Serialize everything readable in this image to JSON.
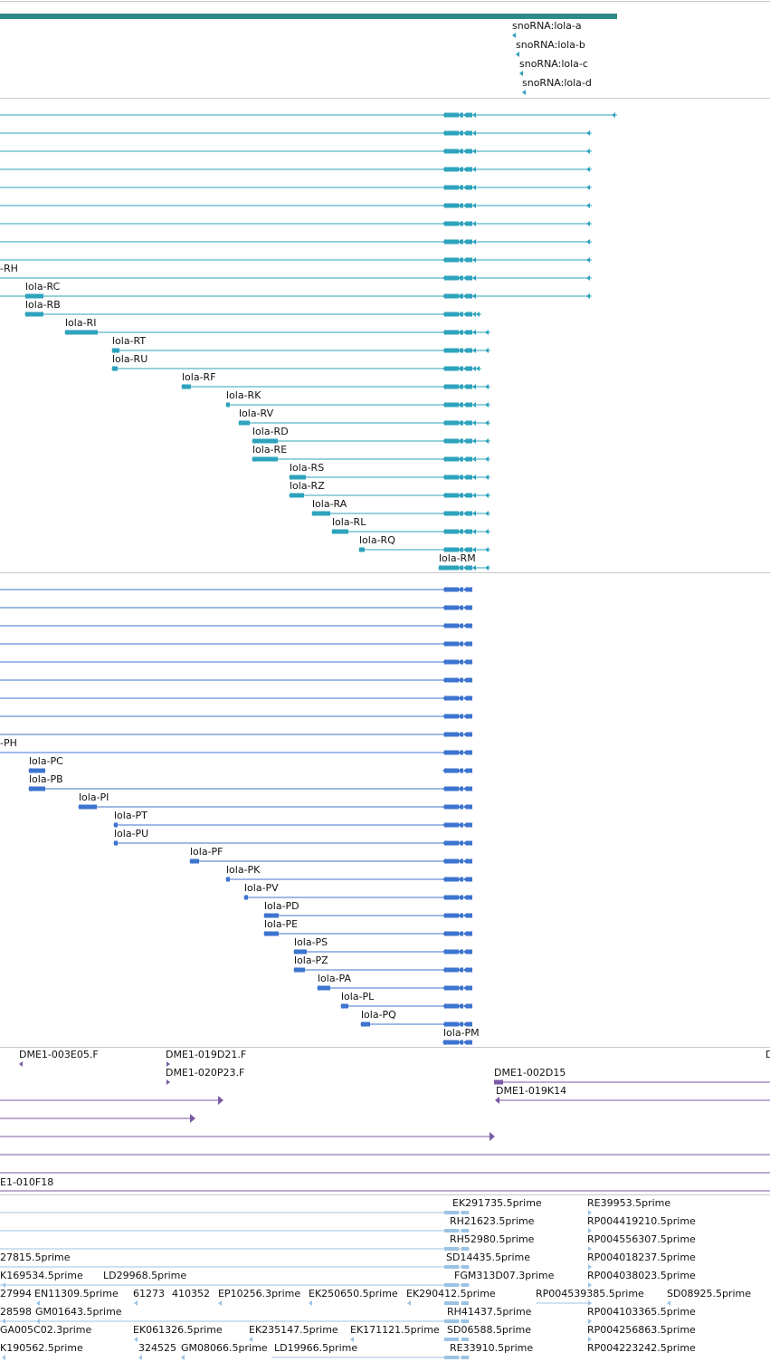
{
  "colors": {
    "rna": "#2ea3bd",
    "protein": "#3d74cf",
    "clone": "#7a5aa6",
    "est": "#9cc3e3",
    "divider": "#c8c8c8",
    "bar": "#2e8b87"
  },
  "snoRNA": {
    "labels": [
      "snoRNA:lola-a",
      "snoRNA:lola-b",
      "snoRNA:lola-c",
      "snoRNA:lola-d"
    ]
  },
  "transcripts": {
    "labels": [
      "-RH",
      "lola-RC",
      "lola-RB",
      "lola-RI",
      "lola-RT",
      "lola-RU",
      "lola-RF",
      "lola-RK",
      "lola-RV",
      "lola-RD",
      "lola-RE",
      "lola-RS",
      "lola-RZ",
      "lola-RA",
      "lola-RL",
      "lola-RQ",
      "lola-RM"
    ]
  },
  "proteins": {
    "labels": [
      "-PH",
      "lola-PC",
      "lola-PB",
      "lola-PI",
      "lola-PT",
      "lola-PU",
      "lola-PF",
      "lola-PK",
      "lola-PV",
      "lola-PD",
      "lola-PE",
      "lola-PS",
      "lola-PZ",
      "lola-PA",
      "lola-PL",
      "lola-PQ",
      "lola-PM"
    ]
  },
  "clones": {
    "labels": [
      "DME1-003E05.F",
      "DME1-019D21.F",
      "DME1-020P23.F",
      "DME1-002D15",
      "DME1-019K14",
      "E1-010F18",
      "D"
    ]
  },
  "ests": {
    "labels": [
      "EK291735.5prime",
      "RE39953.5prime",
      "RH21623.5prime",
      "RP004419210.5prime",
      "RH52980.5prime",
      "RP004556307.5prime",
      "27815.5prime",
      "SD14435.5prime",
      "RP004018237.5prime",
      "K169534.5prime",
      "LD29968.5prime",
      "FGM313D07.3prime",
      "RP004038023.5prime",
      "27994",
      "EN11309.5prime",
      "61273",
      "410352",
      "EP10256.3prime",
      "EK250650.5prime",
      "EK290412.5prime",
      "RP004539385.5prime",
      "SD08925.5prime",
      "28598",
      "GM01643.5prime",
      "RH41437.5prime",
      "RP004103365.5prime",
      "GA005C02.3prime",
      "EK061326.5prime",
      "EK235147.5prime",
      "EK171121.5prime",
      "SD06588.5prime",
      "RP004256863.5prime",
      "K190562.5prime",
      "324525",
      "GM08066.5prime",
      "LD19966.5prime",
      "RE33910.5prime",
      "RP004223242.5prime"
    ]
  }
}
